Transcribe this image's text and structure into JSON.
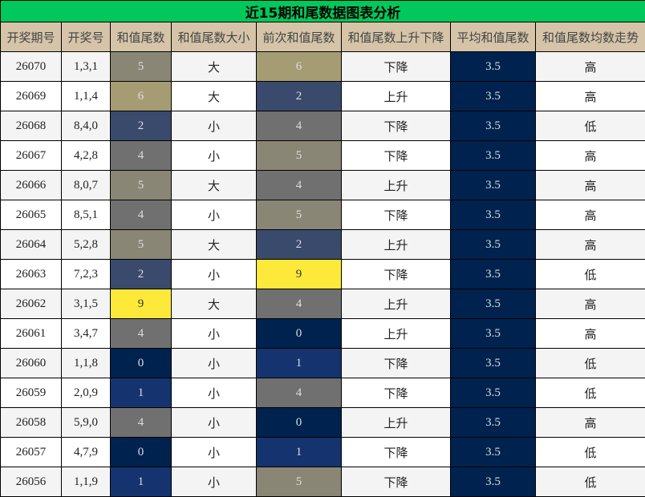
{
  "title": "近15期和尾数据图表分析",
  "headers": [
    "开奖期号",
    "开奖号",
    "和值尾数",
    "和值尾数大小",
    "前次和值尾数",
    "和值尾数上升下降",
    "平均和值尾数",
    "和值尾数均数走势"
  ],
  "colors": {
    "title_bg": "#00c85a",
    "header_bg": "#d5c4a8",
    "avg_bg": "#00224e",
    "tail": {
      "0": "#00224e",
      "1": "#15346f",
      "2": "#3a4a6c",
      "4": "#707070",
      "5": "#8a8676",
      "6": "#a59c74",
      "9": "#fde93a"
    }
  },
  "rows": [
    {
      "issue": "26070",
      "numbers": "1,3,1",
      "tail": "5",
      "size": "大",
      "prev": "6",
      "trend": "下降",
      "avg": "3.5",
      "avg_trend": "高"
    },
    {
      "issue": "26069",
      "numbers": "1,1,4",
      "tail": "6",
      "size": "大",
      "prev": "2",
      "trend": "上升",
      "avg": "3.5",
      "avg_trend": "高"
    },
    {
      "issue": "26068",
      "numbers": "8,4,0",
      "tail": "2",
      "size": "小",
      "prev": "4",
      "trend": "下降",
      "avg": "3.5",
      "avg_trend": "低"
    },
    {
      "issue": "26067",
      "numbers": "4,2,8",
      "tail": "4",
      "size": "小",
      "prev": "5",
      "trend": "下降",
      "avg": "3.5",
      "avg_trend": "高"
    },
    {
      "issue": "26066",
      "numbers": "8,0,7",
      "tail": "5",
      "size": "大",
      "prev": "4",
      "trend": "上升",
      "avg": "3.5",
      "avg_trend": "高"
    },
    {
      "issue": "26065",
      "numbers": "8,5,1",
      "tail": "4",
      "size": "小",
      "prev": "5",
      "trend": "下降",
      "avg": "3.5",
      "avg_trend": "高"
    },
    {
      "issue": "26064",
      "numbers": "5,2,8",
      "tail": "5",
      "size": "大",
      "prev": "2",
      "trend": "上升",
      "avg": "3.5",
      "avg_trend": "高"
    },
    {
      "issue": "26063",
      "numbers": "7,2,3",
      "tail": "2",
      "size": "小",
      "prev": "9",
      "trend": "下降",
      "avg": "3.5",
      "avg_trend": "低"
    },
    {
      "issue": "26062",
      "numbers": "3,1,5",
      "tail": "9",
      "size": "大",
      "prev": "4",
      "trend": "上升",
      "avg": "3.5",
      "avg_trend": "高"
    },
    {
      "issue": "26061",
      "numbers": "3,4,7",
      "tail": "4",
      "size": "小",
      "prev": "0",
      "trend": "上升",
      "avg": "3.5",
      "avg_trend": "高"
    },
    {
      "issue": "26060",
      "numbers": "1,1,8",
      "tail": "0",
      "size": "小",
      "prev": "1",
      "trend": "下降",
      "avg": "3.5",
      "avg_trend": "低"
    },
    {
      "issue": "26059",
      "numbers": "2,0,9",
      "tail": "1",
      "size": "小",
      "prev": "4",
      "trend": "下降",
      "avg": "3.5",
      "avg_trend": "低"
    },
    {
      "issue": "26058",
      "numbers": "5,9,0",
      "tail": "4",
      "size": "小",
      "prev": "0",
      "trend": "上升",
      "avg": "3.5",
      "avg_trend": "高"
    },
    {
      "issue": "26057",
      "numbers": "4,7,9",
      "tail": "0",
      "size": "小",
      "prev": "1",
      "trend": "下降",
      "avg": "3.5",
      "avg_trend": "低"
    },
    {
      "issue": "26056",
      "numbers": "1,1,9",
      "tail": "1",
      "size": "小",
      "prev": "5",
      "trend": "下降",
      "avg": "3.5",
      "avg_trend": "低"
    }
  ]
}
